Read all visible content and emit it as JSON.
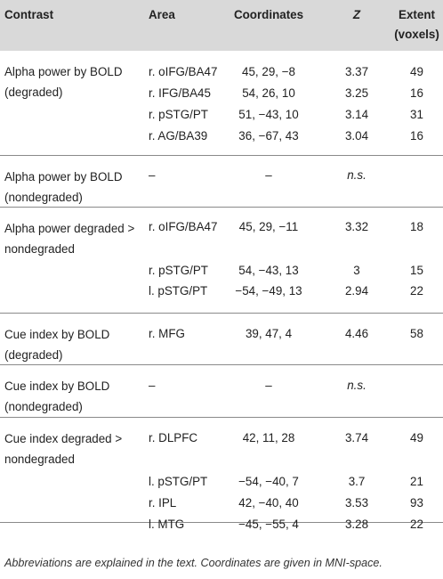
{
  "header": {
    "contrast": "Contrast",
    "area": "Area",
    "coordinates": "Coordinates",
    "z": "Z",
    "extent_line1": "Extent",
    "extent_line2": "(voxels)"
  },
  "groups": [
    {
      "contrast": "Alpha power by BOLD (degraded)",
      "rows": [
        {
          "area": "r. oIFG/BA47",
          "coord": "45, 29, −8",
          "z": "3.37",
          "extent": "49"
        },
        {
          "area": "r. IFG/BA45",
          "coord": "54, 26, 10",
          "z": "3.25",
          "extent": "16"
        },
        {
          "area": "r. pSTG/PT",
          "coord": "51, −43, 10",
          "z": "3.14",
          "extent": "31"
        },
        {
          "area": "r. AG/BA39",
          "coord": "36, −67, 43",
          "z": "3.04",
          "extent": "16"
        }
      ]
    },
    {
      "contrast": "Alpha power by BOLD (nondegraded)",
      "rows": [
        {
          "area": "–",
          "coord": "–",
          "z": "n.s.",
          "extent": ""
        }
      ]
    },
    {
      "contrast": "Alpha power degraded > nondegraded",
      "rows": [
        {
          "area": "r. oIFG/BA47",
          "coord": "45, 29, −11",
          "z": "3.32",
          "extent": "18"
        },
        {
          "area": "r. pSTG/PT",
          "coord": "54, −43, 13",
          "z": "3",
          "extent": "15"
        },
        {
          "area": "l. pSTG/PT",
          "coord": "−54, −49, 13",
          "z": "2.94",
          "extent": "22"
        }
      ]
    },
    {
      "contrast": "Cue index by BOLD (degraded)",
      "rows": [
        {
          "area": "r. MFG",
          "coord": "39, 47, 4",
          "z": "4.46",
          "extent": "58"
        }
      ]
    },
    {
      "contrast": "Cue index by BOLD (nondegraded)",
      "rows": [
        {
          "area": "–",
          "coord": "–",
          "z": "n.s.",
          "extent": ""
        }
      ]
    },
    {
      "contrast": "Cue index degraded > nondegraded",
      "rows": [
        {
          "area": "r. DLPFC",
          "coord": "42, 11, 28",
          "z": "3.74",
          "extent": "49"
        },
        {
          "area": "l. pSTG/PT",
          "coord": "−54, −40, 7",
          "z": "3.7",
          "extent": "21"
        },
        {
          "area": "r. IPL",
          "coord": "42, −40, 40",
          "z": "3.53",
          "extent": "93"
        },
        {
          "area": "l. MTG",
          "coord": "−45, −55, 4",
          "z": "3.28",
          "extent": "22"
        }
      ]
    }
  ],
  "footer": "Abbreviations are explained in the text. Coordinates are given in MNI-space."
}
